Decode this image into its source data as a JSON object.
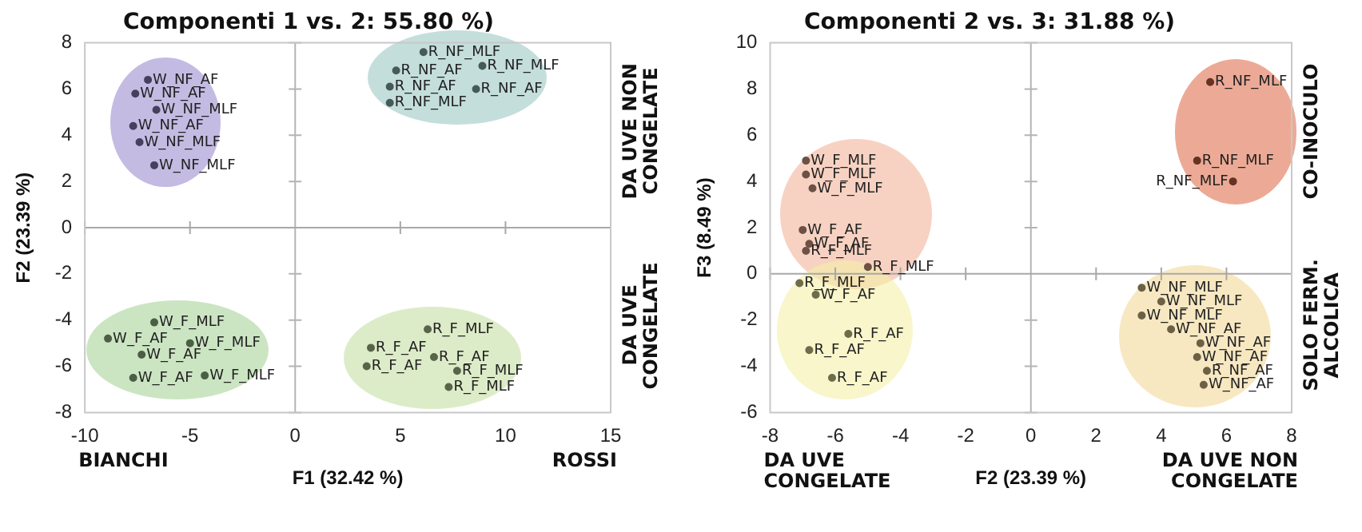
{
  "chart_data": [
    {
      "type": "scatter",
      "title": "Componenti 1 vs. 2: 55.80 %)",
      "xlabel": "F1 (32.42 %)",
      "ylabel": "F2 (23.39 %)",
      "xlim": [
        -10,
        15
      ],
      "xticks": [
        -10,
        -5,
        0,
        5,
        10,
        15
      ],
      "ylim": [
        -8,
        8
      ],
      "yticks": [
        -8,
        -6,
        -4,
        -2,
        0,
        2,
        4,
        6,
        8
      ],
      "grid": false,
      "legend": false,
      "marker": "circle",
      "ref_lines": [
        {
          "axis": "x",
          "value": 0,
          "color": "#b4b4b4"
        },
        {
          "axis": "y",
          "value": 0,
          "color": "#a8a8a8"
        }
      ],
      "annotations": [
        "BIANCHI",
        "ROSSI",
        "DA UVE NON CONGELATE",
        "DA UVE CONGELATE"
      ],
      "series": [
        {
          "color": "#46405e",
          "x": [
            -7.0,
            -7.6,
            -6.6,
            -7.7,
            -7.4,
            -6.7
          ],
          "values": [
            6.4,
            5.8,
            5.1,
            4.4,
            3.7,
            2.7
          ],
          "value_labels": [
            "W_NF_AF",
            "W_NF_AF",
            "W_NF_MLF",
            "W_NF_AF",
            "W_NF_MLF",
            "W_NF_MLF"
          ]
        },
        {
          "color": "#465a58",
          "x": [
            6.1,
            4.8,
            8.9,
            4.5,
            8.6,
            4.5
          ],
          "values": [
            7.6,
            6.8,
            7.0,
            6.1,
            6.0,
            5.4
          ],
          "value_labels": [
            "R_NF_MLF",
            "R_NF_AF",
            "R_NF_MLF",
            "R_NF_AF",
            "R_NF_AF",
            "R_NF_MLF"
          ]
        },
        {
          "color": "#4c5f45",
          "x": [
            -6.7,
            -8.9,
            -5.0,
            -7.3,
            -7.7,
            -4.3
          ],
          "values": [
            -4.1,
            -4.8,
            -5.0,
            -5.5,
            -6.5,
            -6.4
          ],
          "value_labels": [
            "W_F_MLF",
            "W_F_AF",
            "W_F_MLF",
            "W_F_AF",
            "W_F_AF",
            "W_F_MLF"
          ]
        },
        {
          "color": "#59654a",
          "x": [
            6.3,
            3.6,
            3.4,
            6.6,
            7.7,
            7.3
          ],
          "values": [
            -4.4,
            -5.2,
            -6.0,
            -5.6,
            -6.2,
            -6.9
          ],
          "value_labels": [
            "R_F_MLF",
            "R_F_AF",
            "R_F_AF",
            "R_F_AF",
            "R_F_MLF",
            "R_F_MLF"
          ]
        }
      ]
    },
    {
      "type": "scatter",
      "title": "Componenti 2 vs. 3: 31.88 %)",
      "xlabel": "F2 (23.39 %)",
      "ylabel": "F3 (8.49 %)",
      "xlim": [
        -8,
        8
      ],
      "xticks": [
        -8,
        -6,
        -4,
        -2,
        0,
        2,
        4,
        6,
        8
      ],
      "ylim": [
        -6,
        10
      ],
      "yticks": [
        -6,
        -4,
        -2,
        0,
        2,
        4,
        6,
        8,
        10
      ],
      "grid": false,
      "legend": false,
      "marker": "circle",
      "ref_lines": [
        {
          "axis": "x",
          "value": 0,
          "color": "#b4b4b4"
        },
        {
          "axis": "y",
          "value": 0,
          "color": "#a8a8a8"
        }
      ],
      "annotations": [
        "DA UVE CONGELATE",
        "DA UVE NON CONGELATE",
        "CO-INOCULO",
        "SOLO FERM. ALCOLICA"
      ],
      "series": [
        {
          "color": "#653324",
          "x": [
            5.5,
            5.1,
            6.2
          ],
          "values": [
            8.3,
            4.9,
            4.0
          ],
          "value_labels": [
            "R_NF_MLF",
            "R_NF_MLF",
            "R_NF_MLF"
          ]
        },
        {
          "color": "#6d5145",
          "x": [
            -6.9,
            -6.9,
            -6.7,
            -7.0,
            -6.8,
            -6.9,
            -5.0
          ],
          "values": [
            4.9,
            4.3,
            3.7,
            1.9,
            1.3,
            1.0,
            0.3
          ],
          "value_labels": [
            "W_F_MLF",
            "W_F_MLF",
            "W_F_MLF",
            "W_F_AF",
            "W_F_AF",
            "R_F_MLF",
            "R_F_MLF"
          ]
        },
        {
          "color": "#6e6c4b",
          "x": [
            -7.1,
            -6.6,
            -6.8,
            -5.6,
            -6.1
          ],
          "values": [
            -0.4,
            -0.9,
            -3.3,
            -2.6,
            -4.5
          ],
          "value_labels": [
            "R_F_MLF",
            "W_F_AF",
            "R_F_AF",
            "R_F_AF",
            "R_F_AF"
          ]
        },
        {
          "color": "#6d6145",
          "x": [
            3.4,
            4.0,
            3.4,
            4.3,
            5.2,
            5.1,
            5.4,
            5.3
          ],
          "values": [
            -0.6,
            -1.2,
            -1.8,
            -2.4,
            -3.0,
            -3.6,
            -4.2,
            -4.8
          ],
          "value_labels": [
            "W_NF_MLF",
            "W_NF_MLF",
            "W_NF_MLF",
            "W_NF_AF",
            "W_NF_AF",
            "W_NF_AF",
            "R_NF_AF",
            "W_NF_AF"
          ]
        }
      ]
    }
  ]
}
